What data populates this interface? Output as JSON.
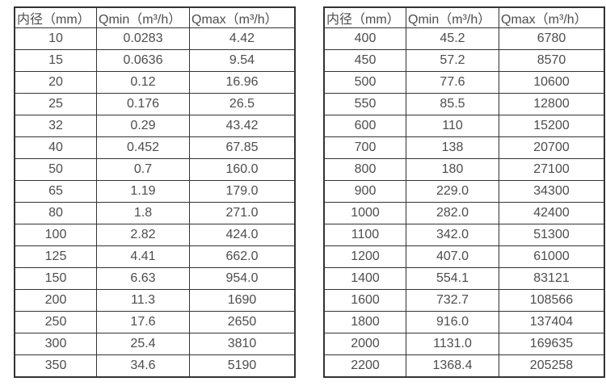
{
  "page": {
    "background_color": "#ffffff",
    "border_color": "#333333",
    "text_color": "#4d4d4d"
  },
  "tables": [
    {
      "name": "flow-range-small-diameters",
      "headers": [
        "内径（mm）",
        "Qmin（m³/h）",
        "Qmax（m³/h）"
      ],
      "rows": [
        [
          "10",
          "0.0283",
          "4.42"
        ],
        [
          "15",
          "0.0636",
          "9.54"
        ],
        [
          "20",
          "0.12",
          "16.96"
        ],
        [
          "25",
          "0.176",
          "26.5"
        ],
        [
          "32",
          "0.29",
          "43.42"
        ],
        [
          "40",
          "0.452",
          "67.85"
        ],
        [
          "50",
          "0.7",
          "160.0"
        ],
        [
          "65",
          "1.19",
          "179.0"
        ],
        [
          "80",
          "1.8",
          "271.0"
        ],
        [
          "100",
          "2.82",
          "424.0"
        ],
        [
          "125",
          "4.41",
          "662.0"
        ],
        [
          "150",
          "6.63",
          "954.0"
        ],
        [
          "200",
          "11.3",
          "1690"
        ],
        [
          "250",
          "17.6",
          "2650"
        ],
        [
          "300",
          "25.4",
          "3810"
        ],
        [
          "350",
          "34.6",
          "5190"
        ]
      ]
    },
    {
      "name": "flow-range-large-diameters",
      "headers": [
        "内径（mm）",
        "Qmin（m³/h）",
        "Qmax（m³/h）"
      ],
      "rows": [
        [
          "400",
          "45.2",
          "6780"
        ],
        [
          "450",
          "57.2",
          "8570"
        ],
        [
          "500",
          "77.6",
          "10600"
        ],
        [
          "550",
          "85.5",
          "12800"
        ],
        [
          "600",
          "110",
          "15200"
        ],
        [
          "700",
          "138",
          "20700"
        ],
        [
          "800",
          "180",
          "27100"
        ],
        [
          "900",
          "229.0",
          "34300"
        ],
        [
          "1000",
          "282.0",
          "42400"
        ],
        [
          "1100",
          "342.0",
          "51300"
        ],
        [
          "1200",
          "407.0",
          "61000"
        ],
        [
          "1400",
          "554.1",
          "83121"
        ],
        [
          "1600",
          "732.7",
          "108566"
        ],
        [
          "1800",
          "916.0",
          "137404"
        ],
        [
          "2000",
          "1131.0",
          "169635"
        ],
        [
          "2200",
          "1368.4",
          "205258"
        ]
      ]
    }
  ]
}
